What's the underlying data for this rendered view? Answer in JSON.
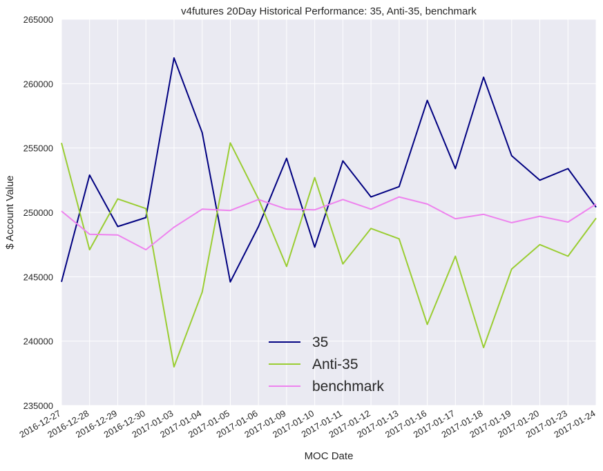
{
  "chart_data": {
    "type": "line",
    "title": "v4futures 20Day Historical Performance: 35, Anti-35, benchmark",
    "xlabel": "MOC Date",
    "ylabel": "$ Account Value",
    "ylim": [
      235000,
      265000
    ],
    "yticks": [
      235000,
      240000,
      245000,
      250000,
      255000,
      260000,
      265000
    ],
    "grid": true,
    "legend_position": "lower-center",
    "x": [
      "2016-12-27",
      "2016-12-28",
      "2016-12-29",
      "2016-12-30",
      "2017-01-03",
      "2017-01-04",
      "2017-01-05",
      "2017-01-06",
      "2017-01-09",
      "2017-01-10",
      "2017-01-11",
      "2017-01-12",
      "2017-01-13",
      "2017-01-16",
      "2017-01-17",
      "2017-01-18",
      "2017-01-19",
      "2017-01-20",
      "2017-01-23",
      "2017-01-24"
    ],
    "series": [
      {
        "name": "35",
        "color": "#000080",
        "values": [
          244600,
          252900,
          248900,
          249600,
          262000,
          256200,
          244600,
          248900,
          254200,
          247300,
          254000,
          251200,
          252000,
          258700,
          253400,
          260500,
          254400,
          252500,
          253400,
          250400
        ]
      },
      {
        "name": "Anti-35",
        "color": "#9ACD32",
        "values": [
          255400,
          247100,
          251050,
          250300,
          238000,
          243800,
          255400,
          251050,
          245800,
          252700,
          246000,
          248750,
          247950,
          241300,
          246600,
          239500,
          245600,
          247500,
          246600,
          249550
        ]
      },
      {
        "name": "benchmark",
        "color": "#EE82EE",
        "values": [
          250100,
          248300,
          248250,
          247100,
          248850,
          250250,
          250150,
          251000,
          250250,
          250200,
          251000,
          250250,
          251200,
          250650,
          249500,
          249850,
          249200,
          249700,
          249250,
          250650
        ]
      }
    ],
    "colors": {
      "plot_background": "#EAEAF2",
      "grid": "#FFFFFF"
    }
  }
}
